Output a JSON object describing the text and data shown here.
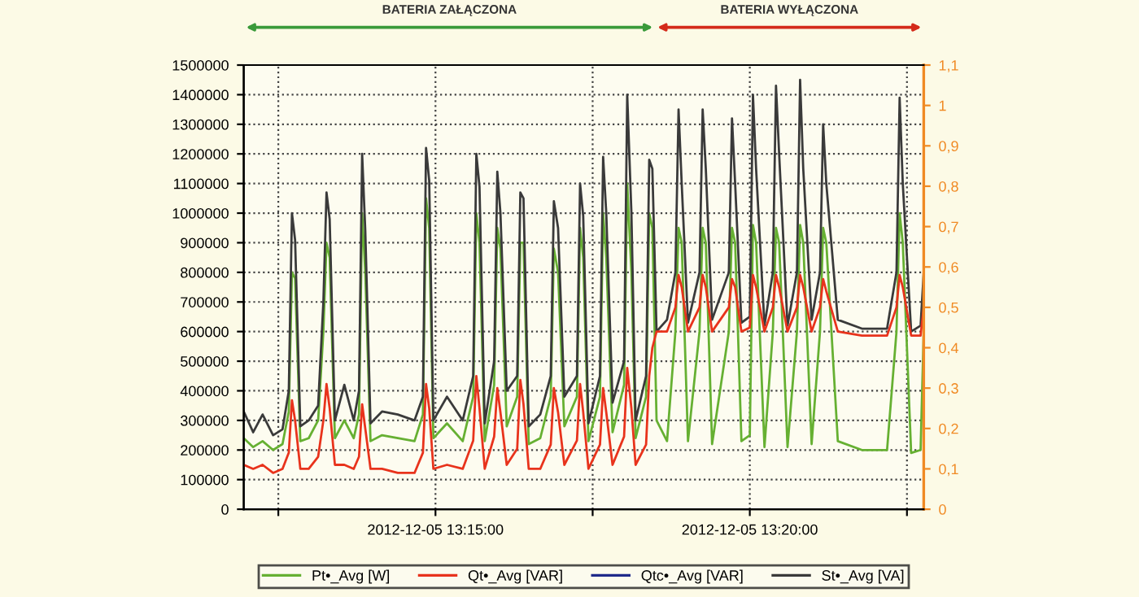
{
  "chart_data": {
    "type": "line",
    "x": [
      "2012-12-05T13:11:57",
      "2012-12-05T13:12:06",
      "2012-12-05T13:12:15",
      "2012-12-05T13:12:25",
      "2012-12-05T13:12:34",
      "2012-12-05T13:12:40",
      "2012-12-05T13:12:43",
      "2012-12-05T13:12:46",
      "2012-12-05T13:12:51",
      "2012-12-05T13:12:59",
      "2012-12-05T13:13:08",
      "2012-12-05T13:13:13",
      "2012-12-05T13:13:16",
      "2012-12-05T13:13:19",
      "2012-12-05T13:13:24",
      "2012-12-05T13:13:33",
      "2012-12-05T13:13:42",
      "2012-12-05T13:13:47",
      "2012-12-05T13:13:50",
      "2012-12-05T13:13:53",
      "2012-12-05T13:13:58",
      "2012-12-05T13:14:09",
      "2012-12-05T13:14:24",
      "2012-12-05T13:14:40",
      "2012-12-05T13:14:48",
      "2012-12-05T13:14:51",
      "2012-12-05T13:14:54",
      "2012-12-05T13:14:58",
      "2012-12-05T13:15:11",
      "2012-12-05T13:15:26",
      "2012-12-05T13:15:36",
      "2012-12-05T13:15:39",
      "2012-12-05T13:15:42",
      "2012-12-05T13:15:47",
      "2012-12-05T13:15:56",
      "2012-12-05T13:15:59",
      "2012-12-05T13:16:02",
      "2012-12-05T13:16:08",
      "2012-12-05T13:16:18",
      "2012-12-05T13:16:21",
      "2012-12-05T13:16:24",
      "2012-12-05T13:16:29",
      "2012-12-05T13:16:40",
      "2012-12-05T13:16:50",
      "2012-12-05T13:16:53",
      "2012-12-05T13:16:57",
      "2012-12-05T13:17:03",
      "2012-12-05T13:17:15",
      "2012-12-05T13:17:18",
      "2012-12-05T13:17:21",
      "2012-12-05T13:17:26",
      "2012-12-05T13:17:37",
      "2012-12-05T13:17:40",
      "2012-12-05T13:17:43",
      "2012-12-05T13:17:49",
      "2012-12-05T13:18:00",
      "2012-12-05T13:18:03",
      "2012-12-05T13:18:07",
      "2012-12-05T13:18:11",
      "2012-12-05T13:18:21",
      "2012-12-05T13:18:24",
      "2012-12-05T13:18:27",
      "2012-12-05T13:18:31",
      "2012-12-05T13:18:41",
      "2012-12-05T13:18:49",
      "2012-12-05T13:18:52",
      "2012-12-05T13:18:55",
      "2012-12-05T13:19:01",
      "2012-12-05T13:19:12",
      "2012-12-05T13:19:15",
      "2012-12-05T13:19:18",
      "2012-12-05T13:19:24",
      "2012-12-05T13:19:40",
      "2012-12-05T13:19:43",
      "2012-12-05T13:19:46",
      "2012-12-05T13:19:52",
      "2012-12-05T13:20:00",
      "2012-12-05T13:20:03",
      "2012-12-05T13:20:06",
      "2012-12-05T13:20:14",
      "2012-12-05T13:20:22",
      "2012-12-05T13:20:25",
      "2012-12-05T13:20:28",
      "2012-12-05T13:20:36",
      "2012-12-05T13:20:45",
      "2012-12-05T13:20:48",
      "2012-12-05T13:20:51",
      "2012-12-05T13:20:59",
      "2012-12-05T13:21:07",
      "2012-12-05T13:21:10",
      "2012-12-05T13:21:13",
      "2012-12-05T13:21:24",
      "2012-12-05T13:21:47",
      "2012-12-05T13:22:11",
      "2012-12-05T13:22:20",
      "2012-12-05T13:22:23",
      "2012-12-05T13:22:26",
      "2012-12-05T13:22:34",
      "2012-12-05T13:22:43",
      "2012-12-05T13:22:46"
    ],
    "series": [
      {
        "name": "Pt•_Avg [W]",
        "color": "#66b032",
        "values": [
          240000,
          210000,
          230000,
          200000,
          220000,
          330000,
          800000,
          780000,
          230000,
          240000,
          300000,
          600000,
          900000,
          850000,
          240000,
          300000,
          240000,
          320000,
          1000000,
          800000,
          230000,
          250000,
          240000,
          230000,
          320000,
          1050000,
          950000,
          240000,
          290000,
          230000,
          380000,
          1000000,
          900000,
          230000,
          420000,
          950000,
          880000,
          280000,
          380000,
          900000,
          900000,
          220000,
          240000,
          380000,
          880000,
          800000,
          280000,
          380000,
          950000,
          850000,
          230000,
          380000,
          1000000,
          850000,
          260000,
          420000,
          1100000,
          800000,
          240000,
          380000,
          1000000,
          950000,
          300000,
          230000,
          600000,
          950000,
          900000,
          230000,
          600000,
          950000,
          900000,
          220000,
          600000,
          950000,
          900000,
          230000,
          250000,
          960000,
          900000,
          210000,
          600000,
          950000,
          900000,
          210000,
          600000,
          960000,
          900000,
          220000,
          600000,
          950000,
          900000,
          230000,
          200000,
          200000,
          600000,
          1000000,
          900000,
          190000,
          200000,
          600000
        ]
      },
      {
        "name": "Qt•_Avg [VAR]",
        "color": "#e8331c",
        "axis": "y2",
        "values": [
          0.11,
          0.1,
          0.11,
          0.09,
          0.1,
          0.14,
          0.27,
          0.22,
          0.1,
          0.1,
          0.13,
          0.22,
          0.31,
          0.25,
          0.11,
          0.11,
          0.1,
          0.13,
          0.26,
          0.2,
          0.1,
          0.1,
          0.09,
          0.09,
          0.14,
          0.31,
          0.25,
          0.1,
          0.11,
          0.1,
          0.17,
          0.33,
          0.25,
          0.1,
          0.18,
          0.3,
          0.24,
          0.11,
          0.15,
          0.32,
          0.26,
          0.1,
          0.1,
          0.16,
          0.3,
          0.24,
          0.11,
          0.17,
          0.31,
          0.24,
          0.1,
          0.16,
          0.3,
          0.24,
          0.11,
          0.18,
          0.35,
          0.25,
          0.11,
          0.16,
          0.33,
          0.4,
          0.44,
          0.44,
          0.5,
          0.58,
          0.55,
          0.44,
          0.5,
          0.58,
          0.55,
          0.44,
          0.5,
          0.57,
          0.55,
          0.44,
          0.45,
          0.58,
          0.55,
          0.44,
          0.5,
          0.58,
          0.55,
          0.44,
          0.5,
          0.58,
          0.55,
          0.44,
          0.5,
          0.57,
          0.54,
          0.44,
          0.43,
          0.43,
          0.5,
          0.58,
          0.55,
          0.43,
          0.43,
          0.5
        ]
      },
      {
        "name": "Qtc•_Avg [VAR]",
        "color": "#1f2a8a",
        "values": [
          null,
          null,
          null,
          null,
          null,
          null,
          null,
          null,
          null,
          null,
          null,
          null,
          null,
          null,
          null,
          null,
          null,
          null,
          null,
          null,
          null,
          null,
          null,
          null,
          null,
          null,
          null,
          null,
          null,
          null,
          null,
          null,
          null,
          null,
          null,
          null,
          null,
          null,
          null,
          null,
          null,
          null,
          null,
          null,
          null,
          null,
          null,
          null,
          null,
          null,
          null,
          null,
          null,
          null,
          null,
          null,
          null,
          null,
          null,
          null,
          null,
          null,
          null,
          null,
          null,
          null,
          null,
          null,
          null,
          null,
          null,
          null,
          null,
          null,
          null,
          null,
          null,
          null,
          null,
          null,
          null,
          null,
          null,
          null,
          null,
          null,
          null,
          null,
          null,
          null,
          null,
          null,
          null,
          null,
          null,
          null,
          null,
          null,
          null,
          null
        ]
      },
      {
        "name": "St•_Avg [VA]",
        "color": "#3a3a3a",
        "values": [
          330000,
          260000,
          320000,
          250000,
          270000,
          400000,
          1000000,
          910000,
          280000,
          300000,
          350000,
          700000,
          1070000,
          980000,
          300000,
          420000,
          300000,
          400000,
          1200000,
          940000,
          290000,
          330000,
          320000,
          300000,
          380000,
          1220000,
          1110000,
          300000,
          380000,
          300000,
          450000,
          1200000,
          1090000,
          290000,
          500000,
          1140000,
          1000000,
          400000,
          450000,
          1070000,
          1050000,
          280000,
          320000,
          450000,
          1040000,
          950000,
          380000,
          450000,
          1100000,
          990000,
          290000,
          450000,
          1190000,
          1000000,
          360000,
          500000,
          1400000,
          1000000,
          300000,
          450000,
          1180000,
          1150000,
          600000,
          640000,
          800000,
          1350000,
          1100000,
          630000,
          800000,
          1350000,
          1150000,
          640000,
          800000,
          1320000,
          1100000,
          630000,
          650000,
          1400000,
          1150000,
          620000,
          800000,
          1430000,
          1200000,
          620000,
          800000,
          1450000,
          1150000,
          640000,
          800000,
          1300000,
          1100000,
          640000,
          610000,
          610000,
          800000,
          1390000,
          1100000,
          600000,
          620000,
          800000
        ]
      }
    ],
    "xlim": [
      "2012-12-05T13:11:57",
      "2012-12-05T13:22:46"
    ],
    "xticks": [
      {
        "value": "2012-12-05T13:12:30",
        "label": null
      },
      {
        "value": "2012-12-05T13:15",
        "label": "2012-12-05 13:15:00"
      },
      {
        "value": "2012-12-05T13:17:30",
        "label": null
      },
      {
        "value": "2012-12-05T13:20",
        "label": "2012-12-05 13:20:00"
      },
      {
        "value": "2012-12-05T13:22:30",
        "label": null
      }
    ],
    "ylim": [
      0,
      1500000
    ],
    "yticks": [
      0,
      100000,
      200000,
      300000,
      400000,
      500000,
      600000,
      700000,
      800000,
      900000,
      1000000,
      1100000,
      1200000,
      1300000,
      1400000,
      1500000
    ],
    "y2lim": [
      0,
      1.1
    ],
    "y2ticks": [
      0,
      {
        "value": 0.1,
        "label": "0,1"
      },
      {
        "value": 0.2,
        "label": "0,2"
      },
      {
        "value": 0.3,
        "label": "0,3"
      },
      {
        "value": 0.4,
        "label": "0,4"
      },
      {
        "value": 0.5,
        "label": "0,5"
      },
      {
        "value": 0.6,
        "label": "0,6"
      },
      {
        "value": 0.7,
        "label": "0,7"
      },
      {
        "value": 0.8,
        "label": "0,8"
      },
      {
        "value": 0.9,
        "label": "0,9"
      },
      1,
      {
        "value": 1.1,
        "label": "1,1"
      }
    ],
    "annotations": [
      "BATERIA ZAŁĄCZONA",
      "BATERIA WYŁĄCZONA"
    ],
    "grid": true,
    "legend": "bottom",
    "marker": "none",
    "line_style": "solid"
  }
}
